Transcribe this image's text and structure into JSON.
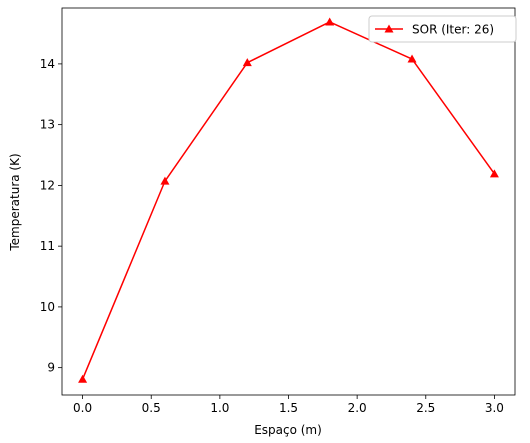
{
  "chart_data": {
    "type": "line",
    "title": "",
    "xlabel": "Espaço (m)",
    "ylabel": "Temperatura (K)",
    "xlim": [
      -0.15,
      3.15
    ],
    "ylim": [
      8.55,
      14.92
    ],
    "xticks": [
      0.0,
      0.5,
      1.0,
      1.5,
      2.0,
      2.5,
      3.0
    ],
    "xtick_labels": [
      "0.0",
      "0.5",
      "1.0",
      "1.5",
      "2.0",
      "2.5",
      "3.0"
    ],
    "yticks": [
      9,
      10,
      11,
      12,
      13,
      14
    ],
    "ytick_labels": [
      "9",
      "10",
      "11",
      "12",
      "13",
      "14"
    ],
    "grid": false,
    "legend": "top-right",
    "series": [
      {
        "name": "SOR (Iter: 26)",
        "color": "#ff0000",
        "marker": "triangle-up",
        "x": [
          0.0,
          0.6,
          1.2,
          1.8,
          2.4,
          3.0
        ],
        "y": [
          8.81,
          12.07,
          14.02,
          14.69,
          14.08,
          12.19
        ]
      }
    ]
  }
}
